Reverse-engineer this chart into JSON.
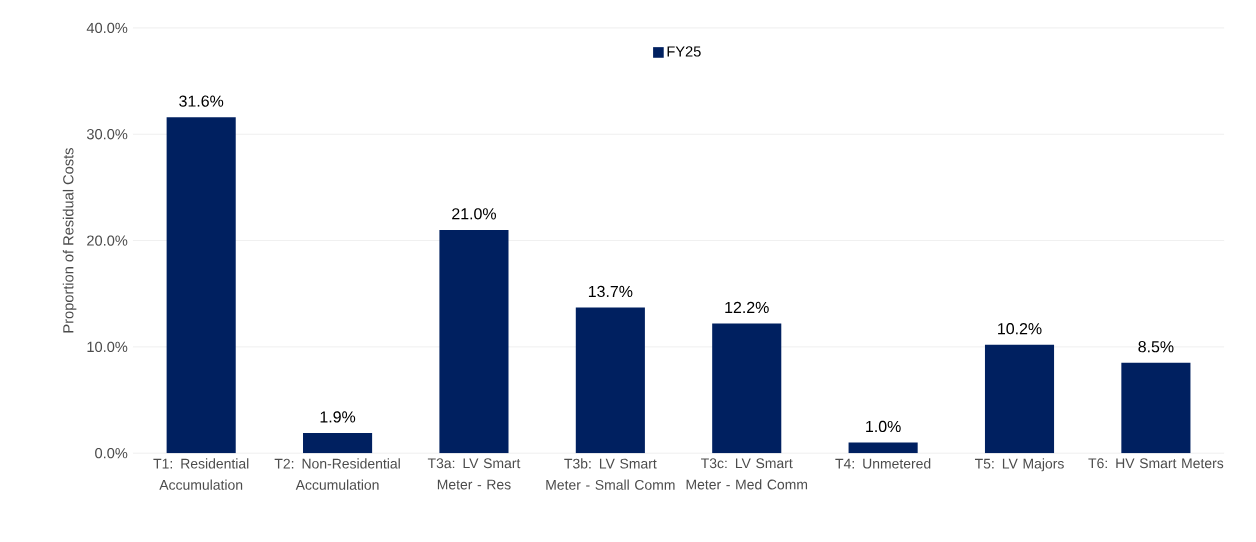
{
  "chart_data": {
    "type": "bar",
    "ylabel": "Proportion of Residual Costs",
    "categories": [
      "T1: Residential Accumulation",
      "T2: Non-Residential Accumulation",
      "T3a: LV Smart Meter - Res",
      "T3b: LV Smart Meter - Small Comm",
      "T3c: LV Smart Meter - Med Comm",
      "T4: Unmetered",
      "T5: LV Majors",
      "T6: HV Smart Meters"
    ],
    "series": [
      {
        "name": "FY25",
        "color": "#002060",
        "values": [
          31.6,
          1.9,
          21.0,
          13.7,
          12.2,
          1.0,
          10.2,
          8.5
        ],
        "value_labels": [
          "31.6%",
          "1.9%",
          "21.0%",
          "13.7%",
          "12.2%",
          "1.0%",
          "10.2%",
          "8.5%"
        ]
      }
    ],
    "ylim": [
      0,
      40
    ],
    "yticks": [
      {
        "value": 0,
        "label": "0.0%"
      },
      {
        "value": 10,
        "label": "10.0%"
      },
      {
        "value": 20,
        "label": "20.0%"
      },
      {
        "value": 30,
        "label": "30.0%"
      },
      {
        "value": 40,
        "label": "40.0%"
      }
    ],
    "grid": "y",
    "legend": "top"
  }
}
